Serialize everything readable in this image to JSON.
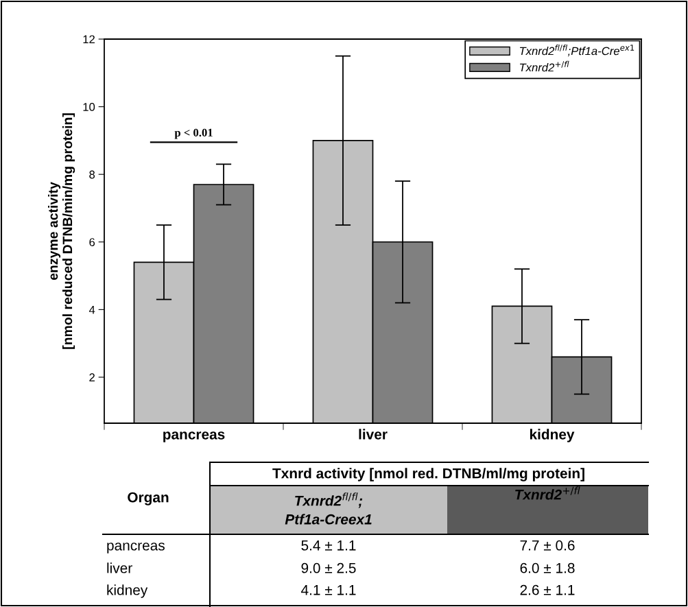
{
  "chart_data": {
    "type": "bar",
    "ylabel": "enzyme activity\n[nmol reduced DTNB/min/mg protein]",
    "categories": [
      "pancreas",
      "liver",
      "kidney"
    ],
    "series": [
      {
        "name": "Txnrd2$^{fl/fl}$;Ptf1a-Cre$^{ex1}$",
        "color": "#c0c0c0",
        "values": [
          5.4,
          9.0,
          4.1
        ],
        "errors": [
          1.1,
          2.5,
          1.1
        ]
      },
      {
        "name": "Txnrd2$^{+/fl}$",
        "color": "#808080",
        "values": [
          7.7,
          6.0,
          2.6
        ],
        "errors": [
          0.6,
          1.8,
          1.1
        ]
      }
    ],
    "ylim": [
      0.64,
      12
    ],
    "yticks": [
      2,
      4,
      6,
      8,
      10,
      12
    ],
    "grid": false,
    "legend": "top right",
    "annotations": [
      "p < 0.01",
      "Organ",
      "Txnrd activity [nmol red. DTNB/ml/mg protein]",
      "Txnrd2$^{fl/fl}$;\nPtf1a-Creex1",
      "Txnrd2$^{+/fl}$",
      "5.4 ± 1.1",
      "7.7 ± 0.6",
      "9.0 ± 2.5",
      "6.0 ± 1.8",
      "4.1 ± 1.1",
      "2.6 ± 1.1"
    ]
  }
}
